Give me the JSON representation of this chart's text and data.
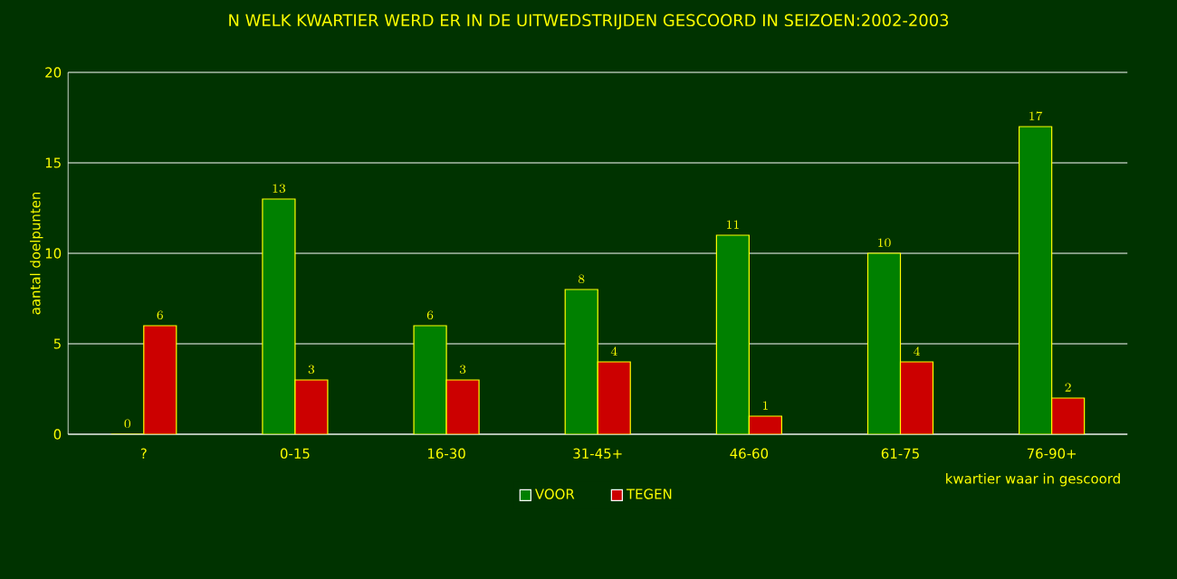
{
  "chart_data": {
    "type": "bar",
    "title": "N WELK KWARTIER WERD ER IN DE UITWEDSTRIJDEN GESCOORD IN SEIZOEN:2002-2003",
    "xlabel": "kwartier waar in gescoord",
    "ylabel": "aantal doelpunten",
    "categories": [
      "?",
      "0-15",
      "16-30",
      "31-45+",
      "46-60",
      "61-75",
      "76-90+"
    ],
    "series": [
      {
        "name": "VOOR",
        "color": "#008000",
        "values": [
          0,
          13,
          6,
          8,
          11,
          10,
          17
        ]
      },
      {
        "name": "TEGEN",
        "color": "#cc0000",
        "values": [
          6,
          3,
          3,
          4,
          1,
          4,
          2
        ]
      }
    ],
    "ylim": [
      0,
      20
    ],
    "yticks": [
      0,
      5,
      10,
      15,
      20
    ],
    "grid": "y",
    "legend": "bottom",
    "data_labels": true
  }
}
